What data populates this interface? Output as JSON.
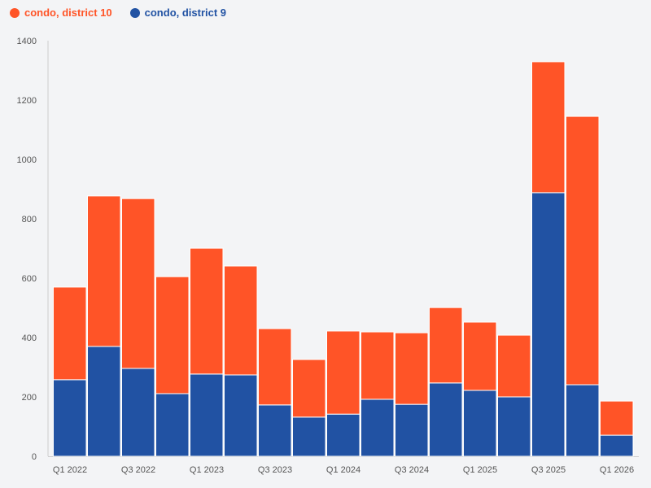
{
  "chart_data": {
    "type": "bar",
    "stacked": true,
    "categories": [
      "Q1 2022",
      "Q2 2022",
      "Q3 2022",
      "Q4 2022",
      "Q1 2023",
      "Q2 2023",
      "Q3 2023",
      "Q4 2023",
      "Q1 2024",
      "Q2 2024",
      "Q3 2024",
      "Q4 2024",
      "Q1 2025",
      "Q2 2025",
      "Q3 2025",
      "Q4 2025",
      "Q1 2026"
    ],
    "x_tick_labels": [
      "Q1 2022",
      "Q3 2022",
      "Q1 2023",
      "Q3 2023",
      "Q1 2024",
      "Q3 2024",
      "Q1 2025",
      "Q3 2025",
      "Q1 2026"
    ],
    "series": [
      {
        "name": "condo, district 9",
        "color": "#2152a3",
        "values": [
          258,
          370,
          296,
          211,
          277,
          274,
          173,
          132,
          142,
          192,
          175,
          247,
          222,
          200,
          888,
          241,
          71
        ]
      },
      {
        "name": "condo, district 10",
        "color": "#ff5427",
        "values": [
          312,
          507,
          572,
          394,
          424,
          367,
          257,
          194,
          280,
          227,
          241,
          254,
          230,
          208,
          441,
          904,
          115
        ]
      }
    ],
    "legend_order": [
      "condo, district 10",
      "condo, district 9"
    ],
    "ylim": [
      0,
      1400
    ],
    "y_ticks": [
      0,
      200,
      400,
      600,
      800,
      1000,
      1200,
      1400
    ],
    "grid": false,
    "legend_position": "top-left"
  }
}
